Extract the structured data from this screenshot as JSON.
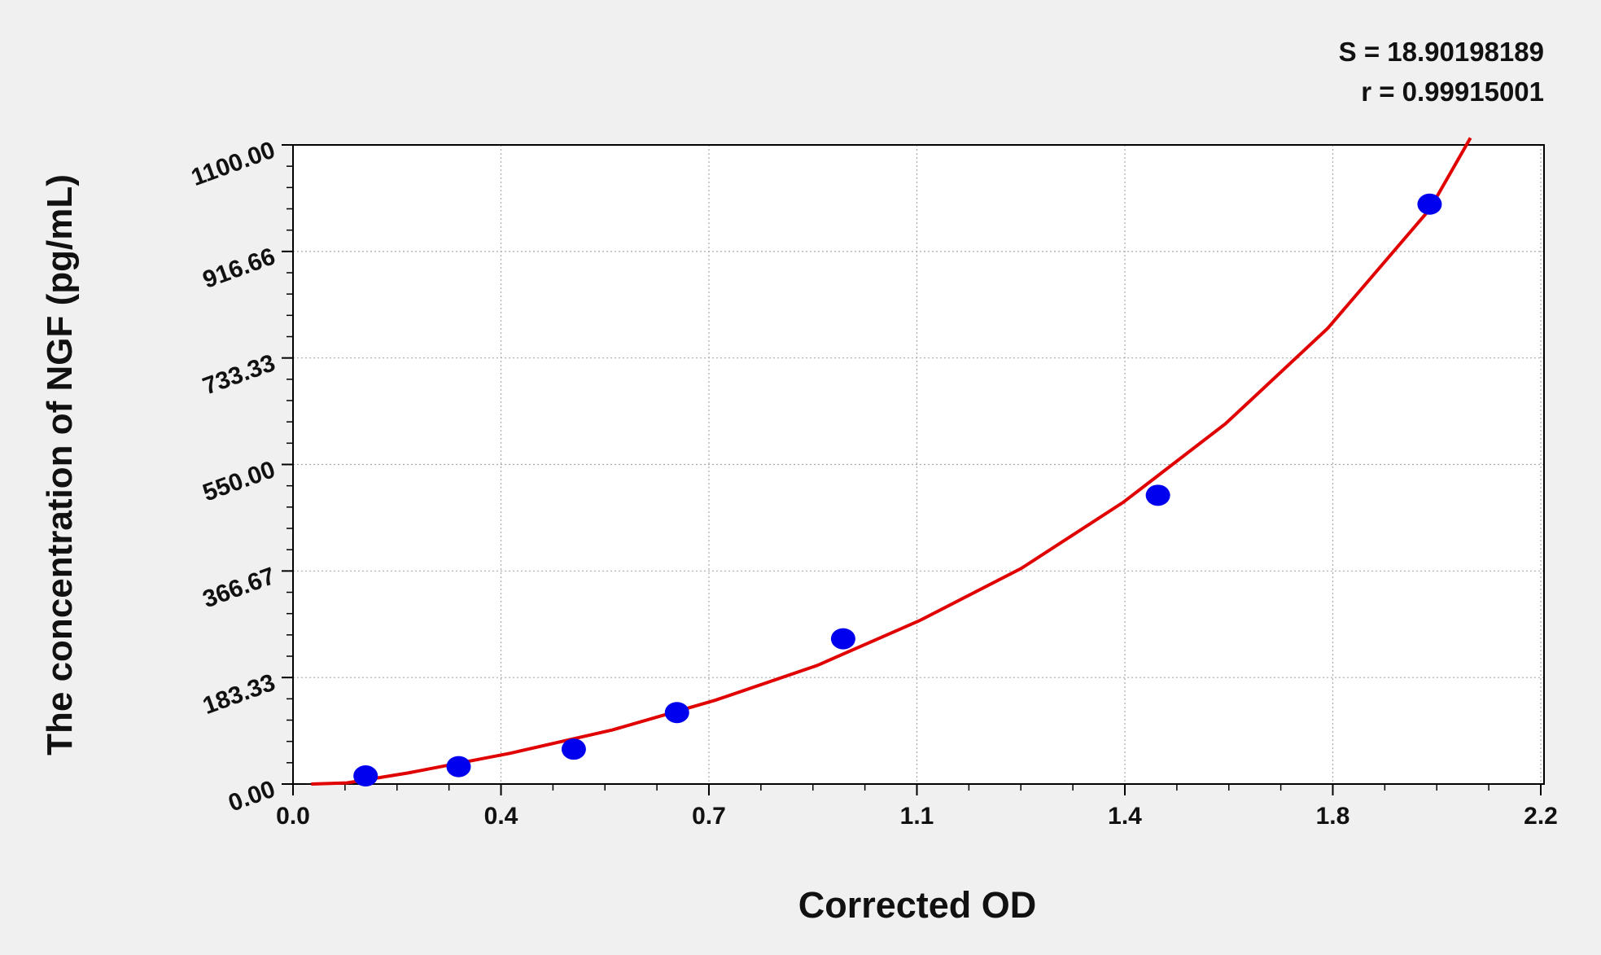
{
  "chart_data": {
    "type": "scatter",
    "annotations": [
      "S = 18.90198189",
      "r = 0.99915001"
    ],
    "xlabel": "Corrected OD",
    "ylabel": "The concentration of NGF (pg/mL)",
    "xlim": [
      0,
      2.2
    ],
    "xticks": [
      {
        "value": 0,
        "label": "0.0"
      },
      {
        "value": 0.3667,
        "label": "0.4"
      },
      {
        "value": 0.7333,
        "label": "0.7"
      },
      {
        "value": 1.1,
        "label": "1.1"
      },
      {
        "value": 1.4667,
        "label": "1.4"
      },
      {
        "value": 1.8333,
        "label": "1.8"
      },
      {
        "value": 2.2,
        "label": "2.2"
      }
    ],
    "ylim": [
      0,
      1100
    ],
    "yticks": [
      {
        "value": 0,
        "label": "0.00"
      },
      {
        "value": 183.33,
        "label": "183.33"
      },
      {
        "value": 366.67,
        "label": "366.67"
      },
      {
        "value": 550,
        "label": "550.00"
      },
      {
        "value": 733.33,
        "label": "733.33"
      },
      {
        "value": 916.66,
        "label": "916.66"
      },
      {
        "value": 1100,
        "label": "1100.00"
      }
    ],
    "grid": true,
    "points": {
      "color": "#0000ee",
      "x": [
        0.128,
        0.292,
        0.495,
        0.677,
        0.97,
        1.525,
        2.004
      ],
      "y": [
        14,
        30,
        60,
        123,
        250,
        497,
        998
      ]
    },
    "curve": {
      "color": "#e00000",
      "x": [
        0.032,
        0.095,
        0.203,
        0.383,
        0.563,
        0.744,
        0.924,
        1.104,
        1.284,
        1.464,
        1.644,
        1.824,
        2.004,
        2.076
      ],
      "y": [
        0,
        2,
        19,
        53,
        93,
        144,
        204,
        281,
        371,
        485,
        620,
        784,
        989,
        1112
      ]
    }
  }
}
